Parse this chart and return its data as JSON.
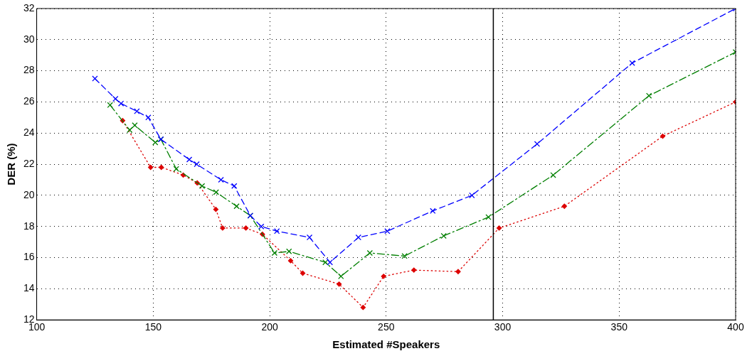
{
  "chart_data": {
    "type": "line",
    "xlabel": "Estimated #Speakers",
    "ylabel": "DER (%)",
    "xlim": [
      100,
      400
    ],
    "xticks": [
      100,
      150,
      200,
      250,
      300,
      350,
      400
    ],
    "ylim": [
      12,
      32
    ],
    "yticks": [
      12,
      14,
      16,
      18,
      20,
      22,
      24,
      26,
      28,
      30,
      32
    ],
    "grid": true,
    "legend": false,
    "ref_lines": [
      {
        "axis": "x",
        "value": 296,
        "color": "#000000",
        "line_style": "solid"
      }
    ],
    "series": [
      {
        "color": "#0000ff",
        "marker": "cross",
        "line_style": "dashed",
        "x": [
          125,
          133.8,
          136.2,
          143,
          147.9,
          153.3,
          165.5,
          168.7,
          179.1,
          184.8,
          191.7,
          196.4,
          203.1,
          217.1,
          225.9,
          238.1,
          250.5,
          270,
          286.8,
          314.8,
          355.6,
          400
        ],
        "values": [
          27.5,
          26.2,
          25.9,
          25.4,
          25.0,
          23.6,
          22.3,
          22.0,
          21.0,
          20.6,
          18.7,
          18.0,
          17.7,
          17.3,
          15.7,
          17.3,
          17.7,
          19.0,
          20.0,
          23.3,
          28.5,
          32.0
        ]
      },
      {
        "color": "#007f00",
        "marker": "cross",
        "line_style": "dashdot",
        "x": [
          131.5,
          139.9,
          142.1,
          150.9,
          153.3,
          159.9,
          171,
          177,
          185.8,
          191.7,
          202.1,
          208.3,
          223.9,
          230.6,
          243,
          257.9,
          274.7,
          293.9,
          321.7,
          362.8,
          400
        ],
        "values": [
          25.8,
          24.2,
          24.5,
          23.4,
          23.6,
          21.7,
          20.6,
          20.2,
          19.3,
          18.7,
          16.3,
          16.4,
          15.7,
          14.8,
          16.3,
          16.1,
          17.4,
          18.6,
          21.3,
          26.4,
          29.2
        ]
      },
      {
        "color": "#dd0000",
        "marker": "diamond",
        "line_style": "dotted",
        "x": [
          136.9,
          148.9,
          153.5,
          162.9,
          168.9,
          176.9,
          179.8,
          189.8,
          196.9,
          209,
          214.2,
          229.8,
          240.1,
          248.9,
          261.9,
          280.9,
          298.5,
          326.5,
          368.7,
          400
        ],
        "values": [
          24.8,
          21.8,
          21.8,
          21.3,
          20.8,
          19.1,
          17.9,
          17.9,
          17.5,
          15.8,
          15.0,
          14.3,
          12.8,
          14.8,
          15.2,
          15.1,
          17.9,
          19.3,
          23.8,
          26.0
        ]
      }
    ]
  }
}
